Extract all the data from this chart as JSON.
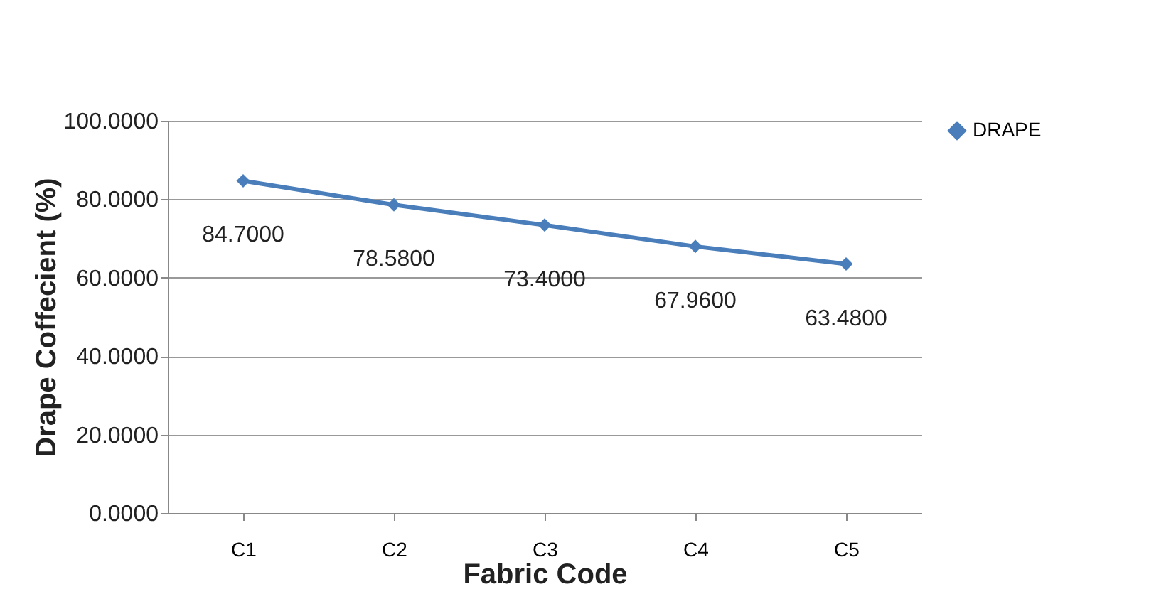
{
  "chart_data": {
    "type": "line",
    "xlabel": "Fabric Code",
    "ylabel": "Drape Coffecient (%)",
    "categories": [
      "C1",
      "C2",
      "C3",
      "C4",
      "C5"
    ],
    "series": [
      {
        "name": "DRAPE",
        "color": "#4a7ebb",
        "values": [
          84.7,
          78.58,
          73.4,
          67.96,
          63.48
        ],
        "value_labels": [
          "84.7000",
          "78.5800",
          "73.4000",
          "67.9600",
          "63.4800"
        ]
      }
    ],
    "ylim": [
      0,
      100
    ],
    "yticks": [
      {
        "value": 0,
        "label": "0.0000"
      },
      {
        "value": 20,
        "label": "20.0000"
      },
      {
        "value": 40,
        "label": "40.0000"
      },
      {
        "value": 60,
        "label": "60.0000"
      },
      {
        "value": 80,
        "label": "80.0000"
      },
      {
        "value": 100,
        "label": "100.0000"
      }
    ],
    "grid": "y",
    "legend": "right",
    "marker": "diamond",
    "line_style": "solid"
  }
}
